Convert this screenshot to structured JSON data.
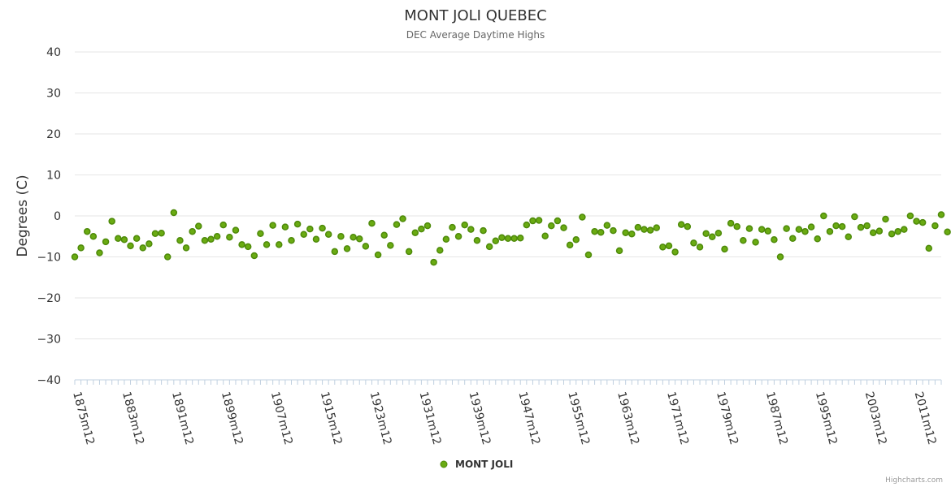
{
  "chart_data": {
    "type": "scatter",
    "title": "MONT JOLI QUEBEC",
    "subtitle": "DEC Average Daytime Highs",
    "ylabel": "Degrees (C)",
    "xlabel": "",
    "ylim": [
      -40,
      40
    ],
    "yticks": [
      40,
      30,
      20,
      10,
      0,
      -10,
      -20,
      -30,
      -40
    ],
    "x_start_year": 1875,
    "x_end_year": 2015,
    "x_tick_labels": [
      "1875m12",
      "1883m12",
      "1891m12",
      "1899m12",
      "1907m12",
      "1915m12",
      "1923m12",
      "1931m12",
      "1939m12",
      "1947m12",
      "1955m12",
      "1963m12",
      "1971m12",
      "1979m12",
      "1987m12",
      "1995m12",
      "2003m12",
      "2011m12"
    ],
    "grid": true,
    "legend_position": "bottom-center",
    "series": [
      {
        "name": "MONT JOLI",
        "color": "#6aab12",
        "stroke": "#4e8a0a",
        "values": [
          -10.0,
          -7.8,
          -3.8,
          -5.0,
          -9.0,
          -6.3,
          -1.3,
          -5.5,
          -5.8,
          -7.3,
          -5.5,
          -7.8,
          -6.8,
          -4.3,
          -4.2,
          -10.0,
          0.8,
          -6.0,
          -7.8,
          -3.8,
          -2.5,
          -6.0,
          -5.7,
          -5.0,
          -2.2,
          -5.2,
          -3.5,
          -7.0,
          -7.5,
          -9.7,
          -4.3,
          -7.0,
          -2.3,
          -7.0,
          -2.7,
          -6.0,
          -2.0,
          -4.5,
          -3.2,
          -5.7,
          -3.0,
          -4.5,
          -8.7,
          -5.0,
          -8.0,
          -5.2,
          -5.6,
          -7.4,
          -1.8,
          -9.5,
          -4.7,
          -7.2,
          -2.1,
          -0.7,
          -8.7,
          -4.1,
          -3.2,
          -2.4,
          -11.3,
          -8.4,
          -5.7,
          -2.8,
          -5.0,
          -2.2,
          -3.3,
          -6.0,
          -3.6,
          -7.5,
          -6.1,
          -5.3,
          -5.5,
          -5.5,
          -5.4,
          -2.2,
          -1.2,
          -1.1,
          -4.9,
          -2.4,
          -1.2,
          -2.9,
          -7.1,
          -5.8,
          -0.3,
          -9.5,
          -3.8,
          -4.0,
          -2.3,
          -3.6,
          -8.5,
          -4.1,
          -4.4,
          -2.8,
          -3.3,
          -3.5,
          -2.9,
          -7.6,
          -7.3,
          -8.8,
          -2.1,
          -2.6,
          -6.6,
          -7.6,
          -4.3,
          -5.1,
          -4.2,
          -8.1,
          -1.8,
          -2.6,
          -6.0,
          -3.1,
          -6.4,
          -3.3,
          -3.7,
          -5.8,
          -10.0,
          -3.1,
          -5.5,
          -3.3,
          -3.8,
          -2.7,
          -5.6,
          0.0,
          -3.8,
          -2.4,
          -2.6,
          -5.1,
          -0.2,
          -2.8,
          -2.4,
          -4.1,
          -3.7,
          -0.8,
          -4.4,
          -3.8,
          -3.3,
          0.0,
          -1.3,
          -1.6,
          -7.9,
          -2.4,
          0.3,
          -3.9
        ]
      }
    ]
  },
  "credits": "Highcharts.com"
}
